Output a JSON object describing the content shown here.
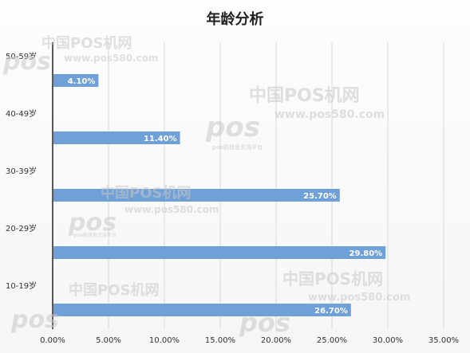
{
  "chart_data": {
    "type": "bar",
    "orientation": "horizontal",
    "title": "年龄分析",
    "categories": [
      "10-19岁",
      "20-29岁",
      "30-39岁",
      "40-49岁",
      "50-59岁"
    ],
    "values": [
      26.7,
      29.8,
      25.7,
      11.4,
      4.1
    ],
    "value_labels": [
      "26.70%",
      "29.80%",
      "25.70%",
      "11.40%",
      "4.10%"
    ],
    "x_ticks": [
      "0.00%",
      "5.00%",
      "10.00%",
      "15.00%",
      "20.00%",
      "25.00%",
      "30.00%",
      "35.00%"
    ],
    "xlim": [
      0,
      35
    ],
    "grid": true,
    "legend": "none",
    "bar_color": "#6fa0d8"
  },
  "watermark": {
    "brand": "中国POS机网",
    "logo": "pos",
    "site": "www.pos580.com",
    "tagline": "pos机信息交流平台"
  }
}
